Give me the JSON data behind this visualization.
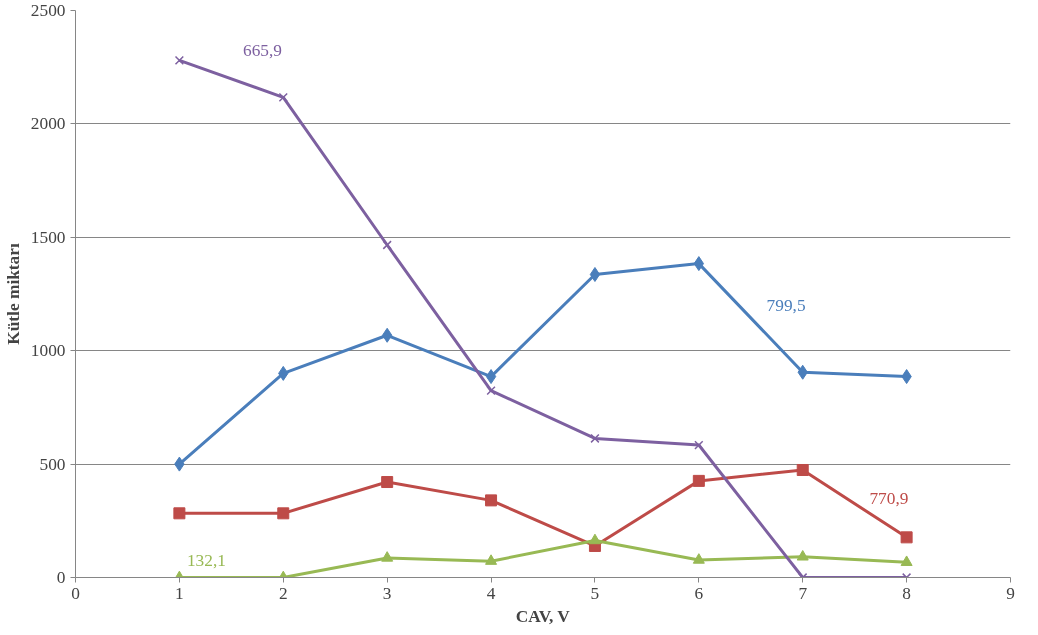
{
  "chart_data": {
    "type": "line",
    "xlabel": "CAV, V",
    "ylabel": "Kütle miktarı",
    "x": [
      1,
      2,
      3,
      4,
      5,
      6,
      7,
      8
    ],
    "series": [
      {
        "color": "#4a7ebb",
        "marker": "diamond",
        "values": [
          500,
          900,
          1068,
          886,
          1336,
          1384,
          905,
          886
        ]
      },
      {
        "color": "#be4b48",
        "marker": "square",
        "values": [
          283,
          283,
          421,
          340,
          139,
          426,
          474,
          177
        ]
      },
      {
        "color": "#98b954",
        "marker": "triangle",
        "values": [
          0,
          0,
          86,
          72,
          163,
          77,
          91,
          67
        ]
      },
      {
        "color": "#7d60a0",
        "marker": "cross",
        "values": [
          2280,
          2117,
          1466,
          824,
          613,
          584,
          0,
          0
        ]
      }
    ],
    "annotations": [
      "799,5",
      "770,9",
      "132,1",
      "665,9"
    ],
    "xlim": [
      0,
      9
    ],
    "xticks": [
      0,
      1,
      2,
      3,
      4,
      5,
      6,
      7,
      8,
      9
    ],
    "ylim": [
      0,
      2500
    ],
    "yticks": [
      0,
      500,
      1000,
      1500,
      2000,
      2500
    ],
    "grid": "y"
  }
}
